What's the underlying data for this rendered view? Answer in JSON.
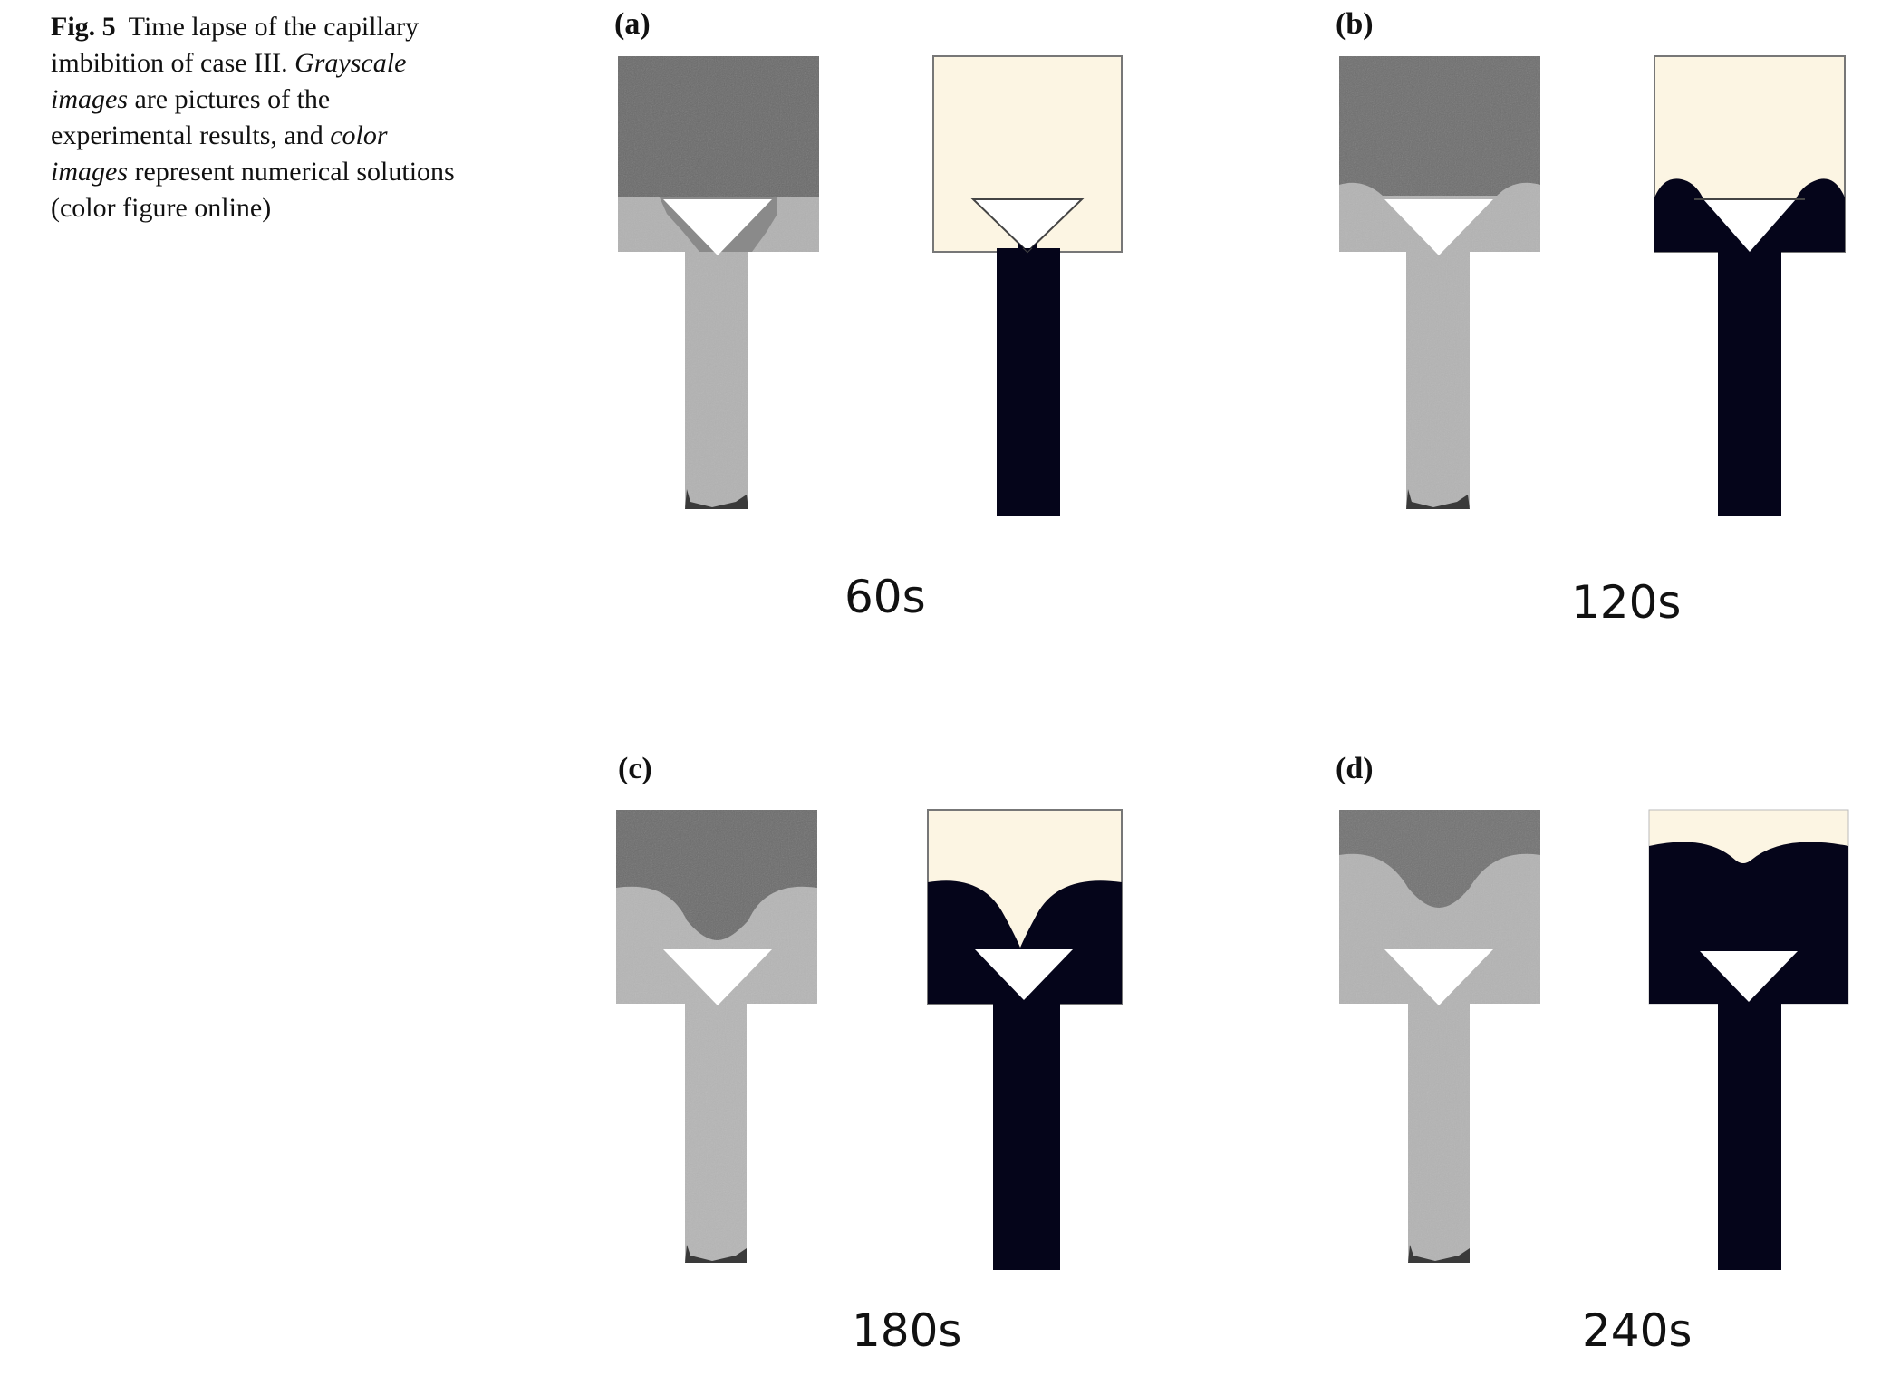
{
  "caption": {
    "label": "Fig. 5",
    "part1": "Time lapse of the capillary imbibition of case III. ",
    "em1": "Grayscale images",
    "part2": " are pictures of the experimental results, and ",
    "em2": "color images",
    "part3": " represent numerical solutions (color figure online)"
  },
  "panels": [
    {
      "label": "(a)",
      "time": "60s"
    },
    {
      "label": "(b)",
      "time": "120s"
    },
    {
      "label": "(c)",
      "time": "180s"
    },
    {
      "label": "(d)",
      "time": "240s"
    }
  ],
  "colors": {
    "wet": "#05051a",
    "dry": "#fcf5e3",
    "exp_dark": "#6e6e6e",
    "exp_light": "#b4b4b4"
  }
}
